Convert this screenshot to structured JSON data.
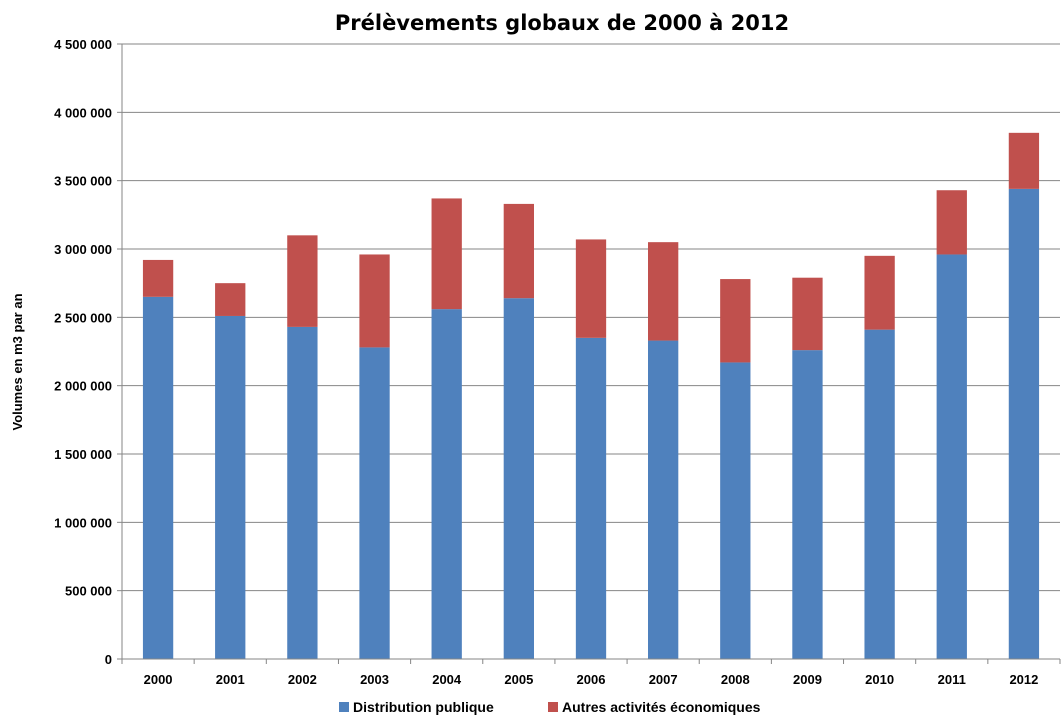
{
  "chart_data": {
    "type": "bar",
    "stacked": true,
    "title": "Prélèvements globaux de 2000 à 2012",
    "xlabel": "",
    "ylabel": "Volumes en m3 par an",
    "categories": [
      "2000",
      "2001",
      "2002",
      "2003",
      "2004",
      "2005",
      "2006",
      "2007",
      "2008",
      "2009",
      "2010",
      "2011",
      "2012"
    ],
    "series": [
      {
        "name": "Distribution publique",
        "color": "#4F81BD",
        "values": [
          2650000,
          2510000,
          2430000,
          2280000,
          2560000,
          2640000,
          2350000,
          2330000,
          2170000,
          2260000,
          2410000,
          2960000,
          3440000
        ]
      },
      {
        "name": "Autres activités économiques",
        "color": "#C0504D",
        "values": [
          270000,
          240000,
          670000,
          680000,
          810000,
          690000,
          720000,
          720000,
          610000,
          530000,
          540000,
          470000,
          410000
        ]
      }
    ],
    "ylim": [
      0,
      4500000
    ],
    "yticks": [
      0,
      500000,
      1000000,
      1500000,
      2000000,
      2500000,
      3000000,
      3500000,
      4000000,
      4500000
    ],
    "ytick_labels": [
      "0",
      "500 000",
      "1 000 000",
      "1 500 000",
      "2 000 000",
      "2 500 000",
      "3 000 000",
      "3 500 000",
      "4 000 000",
      "4 500 000"
    ],
    "grid": true,
    "legend_position": "bottom"
  }
}
